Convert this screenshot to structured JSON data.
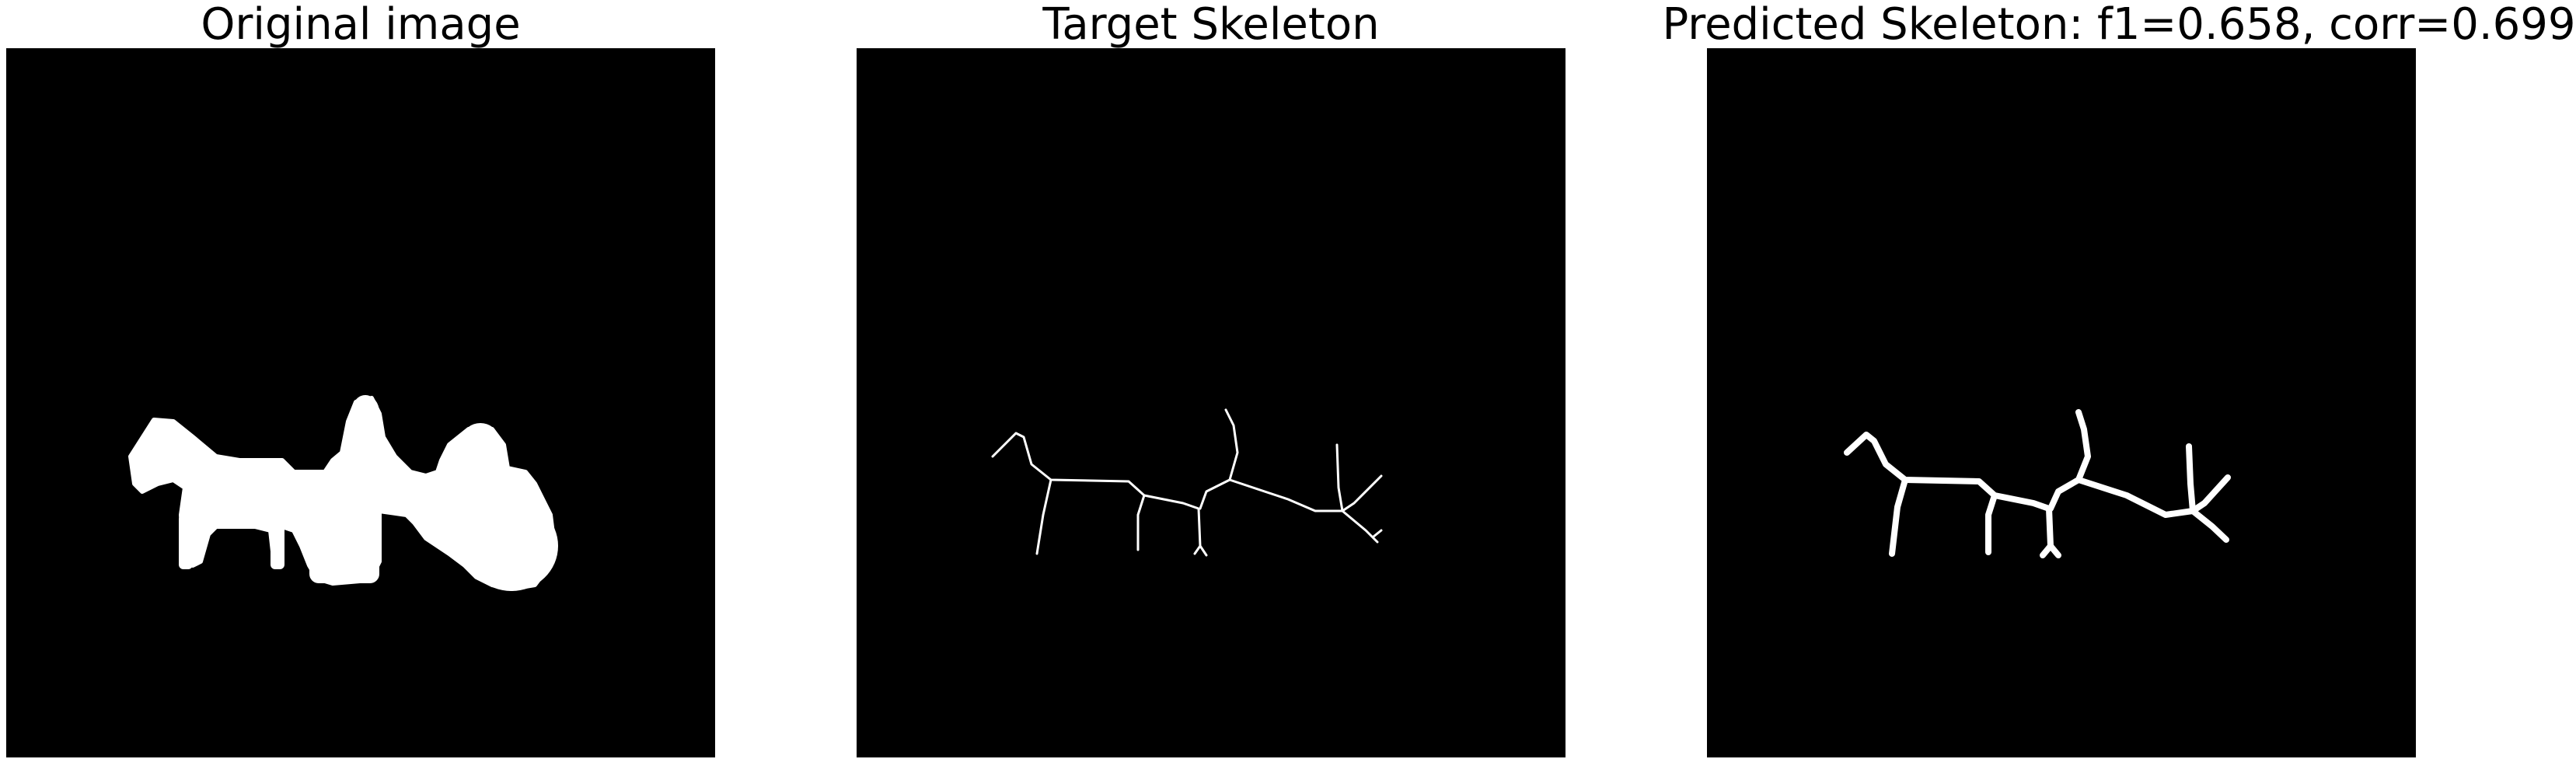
{
  "panels": [
    {
      "title": "Original image",
      "content": "silhouette"
    },
    {
      "title": "Target Skeleton",
      "content": "thin-skeleton"
    },
    {
      "title": "Predicted Skeleton: f1=0.658, corr=0.699",
      "content": "thick-skeleton"
    }
  ],
  "colors": {
    "background": "#000000",
    "foreground": "#ffffff",
    "page": "#ffffff"
  }
}
